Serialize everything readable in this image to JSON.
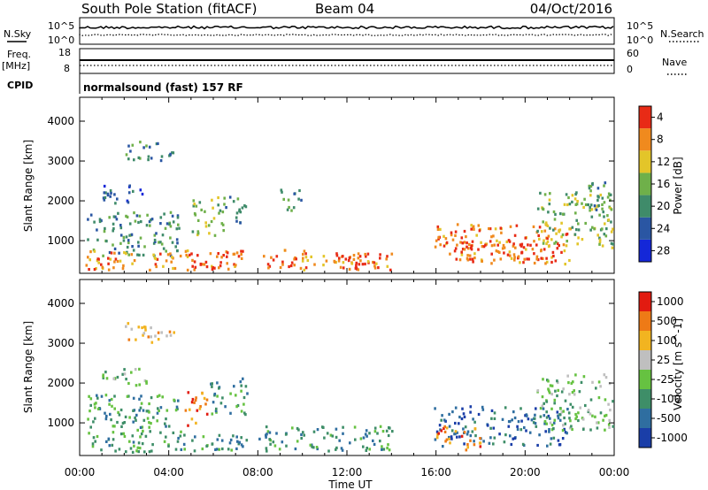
{
  "header": {
    "station": "South Pole Station (fitACF)",
    "beam": "Beam 04",
    "date": "04/Oct/2016"
  },
  "panels": {
    "nsky_label": "N.Sky",
    "freq_label": "Freq.",
    "freq_unit": "[MHz]",
    "cpid_label": "CPID",
    "nsearch_label": "N.Search",
    "nave_label": "Nave",
    "nsky_ticks": [
      "10^5",
      "10^0"
    ],
    "freq_ticks": [
      "18",
      "8"
    ],
    "nsearch_ticks": [
      "10^5",
      "10^0"
    ],
    "nave_ticks": [
      "60",
      "0"
    ],
    "cpid_text": "normalsound (fast) 157 RF"
  },
  "chart_data": [
    {
      "type": "heatmap",
      "name": "power",
      "ylabel": "Slant Range [km]",
      "xlabel": "",
      "yticks": [
        1000,
        2000,
        3000,
        4000
      ],
      "ylim": [
        180,
        4600
      ],
      "colorbar": {
        "label": "Power [dB]",
        "ticks": [
          "4",
          "8",
          "12",
          "16",
          "20",
          "24",
          "28"
        ],
        "colors": [
          "#1427d8",
          "#2a56a3",
          "#3f8b6a",
          "#6fb04a",
          "#e3c529",
          "#f08a1e",
          "#e82b16"
        ]
      },
      "echo_regions": [
        {
          "t": [
            0.3,
            4.5
          ],
          "r": [
            600,
            1700
          ],
          "level": 2
        },
        {
          "t": [
            1.0,
            3.0
          ],
          "r": [
            1900,
            2400
          ],
          "level": 1
        },
        {
          "t": [
            2.0,
            4.2
          ],
          "r": [
            3000,
            3500
          ],
          "level": 2
        },
        {
          "t": [
            5.0,
            6.5
          ],
          "r": [
            1100,
            2100
          ],
          "level": 3
        },
        {
          "t": [
            6.5,
            7.5
          ],
          "r": [
            1400,
            2100
          ],
          "level": 2
        },
        {
          "t": [
            9.0,
            10.0
          ],
          "r": [
            1700,
            2300
          ],
          "level": 2
        },
        {
          "t": [
            0.2,
            7.5
          ],
          "r": [
            250,
            750
          ],
          "level": 5
        },
        {
          "t": [
            4.8,
            6.6
          ],
          "r": [
            250,
            700
          ],
          "level": 6
        },
        {
          "t": [
            8.0,
            14.0
          ],
          "r": [
            250,
            750
          ],
          "level": 5
        },
        {
          "t": [
            11.5,
            13.8
          ],
          "r": [
            250,
            650
          ],
          "level": 6
        },
        {
          "t": [
            15.9,
            22.0
          ],
          "r": [
            400,
            1400
          ],
          "level": 5
        },
        {
          "t": [
            16.8,
            21.5
          ],
          "r": [
            500,
            1000
          ],
          "level": 6
        },
        {
          "t": [
            20.5,
            23.9
          ],
          "r": [
            800,
            2200
          ],
          "level": 3
        },
        {
          "t": [
            22.8,
            23.9
          ],
          "r": [
            1500,
            2500
          ],
          "level": 2
        }
      ]
    },
    {
      "type": "heatmap",
      "name": "velocity",
      "ylabel": "Slant Range [km]",
      "xlabel": "Time UT",
      "xticks": [
        "00:00",
        "04:00",
        "08:00",
        "12:00",
        "16:00",
        "20:00",
        "00:00"
      ],
      "yticks": [
        1000,
        2000,
        3000,
        4000
      ],
      "ylim": [
        180,
        4600
      ],
      "colorbar": {
        "label": "Velocity [m s^-1]",
        "ticks": [
          "1000",
          "500",
          "100",
          "25",
          "-25",
          "-100",
          "-500",
          "-1000"
        ],
        "colors": [
          "#1a3ea8",
          "#2f6ea0",
          "#3e8e68",
          "#66c241",
          "#bfbfbf",
          "#f2b420",
          "#ee7a16",
          "#e21b10"
        ]
      },
      "echo_regions": [
        {
          "t": [
            0.3,
            4.5
          ],
          "r": [
            600,
            1700
          ],
          "level": 2
        },
        {
          "t": [
            1.0,
            3.0
          ],
          "r": [
            1900,
            2400
          ],
          "level": 3
        },
        {
          "t": [
            2.0,
            4.2
          ],
          "r": [
            3000,
            3500
          ],
          "level": 5
        },
        {
          "t": [
            4.7,
            5.7
          ],
          "r": [
            900,
            1800
          ],
          "level": 6
        },
        {
          "t": [
            5.8,
            7.5
          ],
          "r": [
            1200,
            2100
          ],
          "level": 2
        },
        {
          "t": [
            0.2,
            7.5
          ],
          "r": [
            250,
            700
          ],
          "level": 2
        },
        {
          "t": [
            8.0,
            14.0
          ],
          "r": [
            250,
            900
          ],
          "level": 2
        },
        {
          "t": [
            15.9,
            22.0
          ],
          "r": [
            400,
            1400
          ],
          "level": 1
        },
        {
          "t": [
            16.0,
            18.0
          ],
          "r": [
            300,
            900
          ],
          "level": 6
        },
        {
          "t": [
            20.5,
            23.9
          ],
          "r": [
            800,
            2200
          ],
          "level": 3
        }
      ]
    }
  ]
}
